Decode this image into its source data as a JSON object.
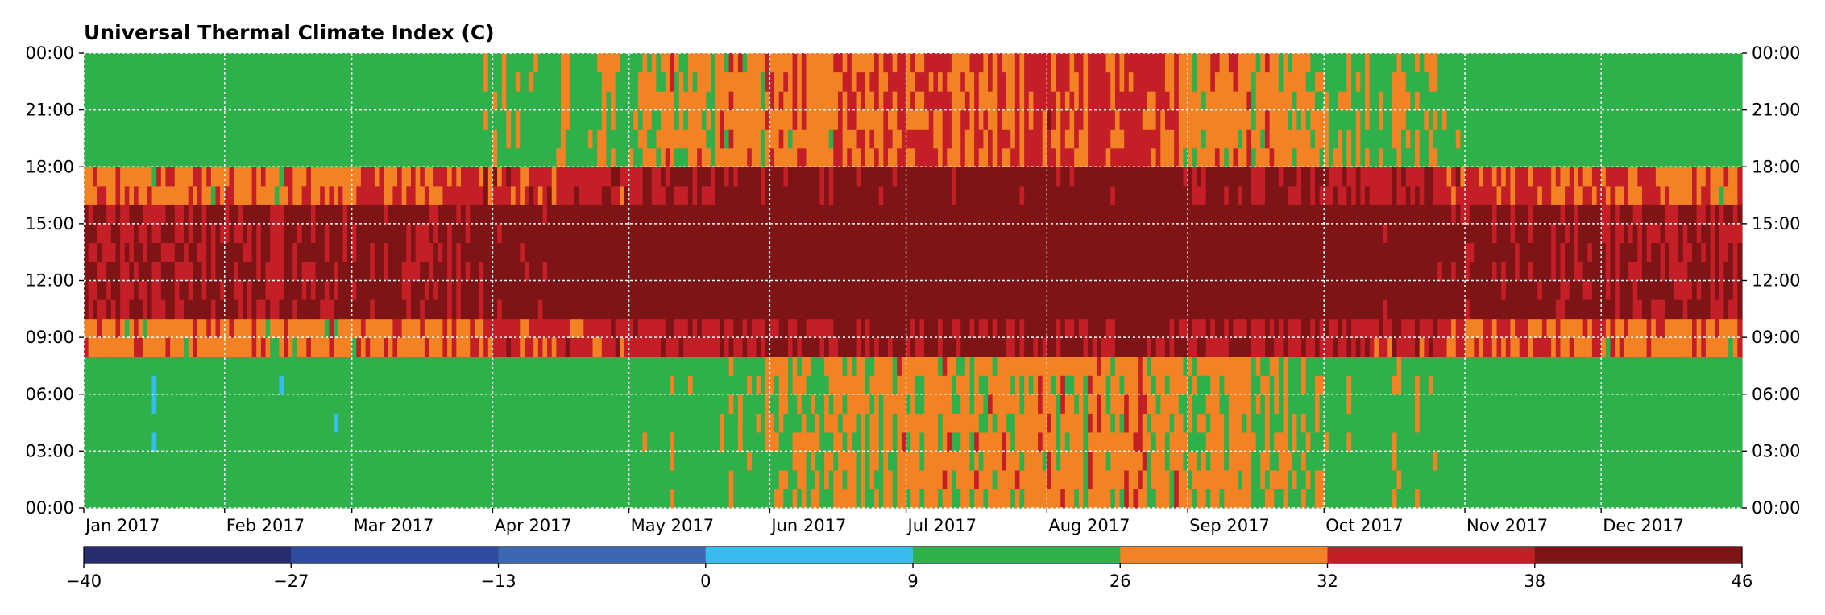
{
  "chart_data": {
    "type": "heatmap",
    "title": "Universal Thermal Climate Index (C)",
    "x_axis": {
      "range": [
        "2017-01-01",
        "2017-12-31"
      ],
      "tick_labels": [
        "Jan 2017",
        "Feb 2017",
        "Mar 2017",
        "Apr 2017",
        "May 2017",
        "Jun 2017",
        "Jul 2017",
        "Aug 2017",
        "Sep 2017",
        "Oct 2017",
        "Nov 2017",
        "Dec 2017"
      ],
      "tick_days": [
        0,
        31,
        59,
        90,
        120,
        151,
        181,
        212,
        243,
        273,
        304,
        334
      ]
    },
    "y_axis": {
      "range_hours": [
        0,
        24
      ],
      "tick_labels": [
        "00:00",
        "03:00",
        "06:00",
        "09:00",
        "12:00",
        "15:00",
        "18:00",
        "21:00",
        "00:00"
      ],
      "tick_hours": [
        0,
        3,
        6,
        9,
        12,
        15,
        18,
        21,
        24
      ],
      "mirrored_right": true
    },
    "grid": true,
    "colorbar": {
      "orientation": "horizontal",
      "boundaries": [
        -40,
        -27,
        -13,
        0,
        9,
        26,
        32,
        38,
        46
      ],
      "tick_labels": [
        "−40",
        "−27",
        "−13",
        "0",
        "9",
        "26",
        "32",
        "38",
        "46"
      ],
      "colors": [
        "#262C6E",
        "#2E4C9E",
        "#3C67B3",
        "#37BDEB",
        "#2EB04A",
        "#F28224",
        "#C41E26",
        "#7E1416"
      ]
    },
    "representative_hourly_utci": {
      "months": [
        "Jan",
        "Feb",
        "Mar",
        "Apr",
        "May",
        "Jun",
        "Jul",
        "Aug",
        "Sep",
        "Oct",
        "Nov",
        "Dec"
      ],
      "night_00_08": [
        14,
        14,
        15,
        18,
        22,
        26,
        28,
        29,
        27,
        22,
        18,
        15
      ],
      "morning_08_10": [
        30,
        29,
        31,
        34,
        37,
        38,
        39,
        39,
        38,
        36,
        32,
        30
      ],
      "midday_10_16": [
        38,
        39,
        40,
        42,
        44,
        45,
        46,
        46,
        45,
        43,
        40,
        38
      ],
      "afternoon_16_18": [
        31,
        30,
        33,
        35,
        38,
        40,
        42,
        42,
        40,
        37,
        33,
        31
      ],
      "evening_18_24": [
        18,
        18,
        20,
        24,
        28,
        30,
        32,
        33,
        29,
        25,
        20,
        18
      ]
    }
  }
}
